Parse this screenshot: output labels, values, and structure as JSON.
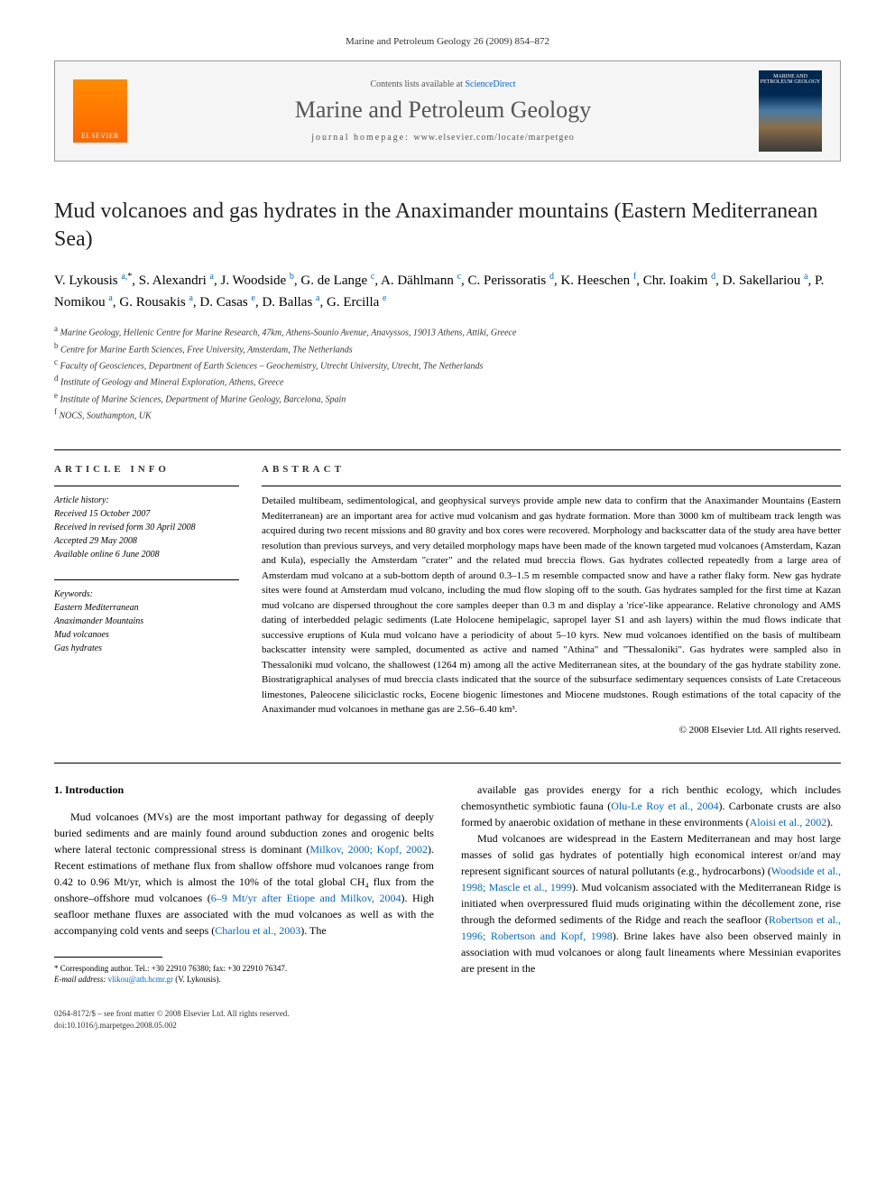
{
  "journal_ref": "Marine and Petroleum Geology 26 (2009) 854–872",
  "header": {
    "elsevier": "ELSEVIER",
    "contents_prefix": "Contents lists available at ",
    "contents_link": "ScienceDirect",
    "journal_name": "Marine and Petroleum Geology",
    "homepage_prefix": "journal homepage: ",
    "homepage_url": "www.elsevier.com/locate/marpetgeo",
    "cover_caption": "MARINE AND PETROLEUM GEOLOGY"
  },
  "title": "Mud volcanoes and gas hydrates in the Anaximander mountains (Eastern Mediterranean Sea)",
  "authors_html": "V. Lykousis <sup>a,</sup><sup class='asterisk'>*</sup>, S. Alexandri <sup>a</sup>, J. Woodside <sup>b</sup>, G. de Lange <sup>c</sup>, A. Dählmann <sup>c</sup>, C. Perissoratis <sup>d</sup>, K. Heeschen <sup>f</sup>, Chr. Ioakim <sup>d</sup>, D. Sakellariou <sup>a</sup>, P. Nomikou <sup>a</sup>, G. Rousakis <sup>a</sup>, D. Casas <sup>e</sup>, D. Ballas <sup>a</sup>, G. Ercilla <sup>e</sup>",
  "affiliations": [
    {
      "sup": "a",
      "text": "Marine Geology, Hellenic Centre for Marine Research, 47km, Athens-Sounio Avenue, Anavyssos, 19013 Athens, Attiki, Greece"
    },
    {
      "sup": "b",
      "text": "Centre for Marine Earth Sciences, Free University, Amsterdam, The Netherlands"
    },
    {
      "sup": "c",
      "text": "Faculty of Geosciences, Department of Earth Sciences – Geochemistry, Utrecht University, Utrecht, The Netherlands"
    },
    {
      "sup": "d",
      "text": "Institute of Geology and Mineral Exploration, Athens, Greece"
    },
    {
      "sup": "e",
      "text": "Institute of Marine Sciences, Department of Marine Geology, Barcelona, Spain"
    },
    {
      "sup": "f",
      "text": "NOCS, Southampton, UK"
    }
  ],
  "article_info_heading": "ARTICLE INFO",
  "abstract_heading": "ABSTRACT",
  "history": {
    "label": "Article history:",
    "received": "Received 15 October 2007",
    "revised": "Received in revised form 30 April 2008",
    "accepted": "Accepted 29 May 2008",
    "online": "Available online 6 June 2008"
  },
  "keywords": {
    "label": "Keywords:",
    "items": [
      "Eastern Mediterranean",
      "Anaximander Mountains",
      "Mud volcanoes",
      "Gas hydrates"
    ]
  },
  "abstract": "Detailed multibeam, sedimentological, and geophysical surveys provide ample new data to confirm that the Anaximander Mountains (Eastern Mediterranean) are an important area for active mud volcanism and gas hydrate formation. More than 3000 km of multibeam track length was acquired during two recent missions and 80 gravity and box cores were recovered. Morphology and backscatter data of the study area have better resolution than previous surveys, and very detailed morphology maps have been made of the known targeted mud volcanoes (Amsterdam, Kazan and Kula), especially the Amsterdam \"crater\" and the related mud breccia flows. Gas hydrates collected repeatedly from a large area of Amsterdam mud volcano at a sub-bottom depth of around 0.3–1.5 m resemble compacted snow and have a rather flaky form. New gas hydrate sites were found at Amsterdam mud volcano, including the mud flow sloping off to the south. Gas hydrates sampled for the first time at Kazan mud volcano are dispersed throughout the core samples deeper than 0.3 m and display a 'rice'-like appearance. Relative chronology and AMS dating of interbedded pelagic sediments (Late Holocene hemipelagic, sapropel layer S1 and ash layers) within the mud flows indicate that successive eruptions of Kula mud volcano have a periodicity of about 5–10 kyrs. New mud volcanoes identified on the basis of multibeam backscatter intensity were sampled, documented as active and named \"Athina\" and \"Thessaloniki\". Gas hydrates were sampled also in Thessaloniki mud volcano, the shallowest (1264 m) among all the active Mediterranean sites, at the boundary of the gas hydrate stability zone. Biostratigraphical analyses of mud breccia clasts indicated that the source of the subsurface sedimentary sequences consists of Late Cretaceous limestones, Paleocene siliciclastic rocks, Eocene biogenic limestones and Miocene mudstones. Rough estimations of the total capacity of the Anaximander mud volcanoes in methane gas are 2.56–6.40 km³.",
  "copyright": "© 2008 Elsevier Ltd. All rights reserved.",
  "intro_heading": "1. Introduction",
  "body": {
    "col1_p1": "Mud volcanoes (MVs) are the most important pathway for degassing of deeply buried sediments and are mainly found around subduction zones and orogenic belts where lateral tectonic compressional stress is dominant (Milkov, 2000; Kopf, 2002). Recent estimations of methane flux from shallow offshore mud volcanoes range from 0.42 to 0.96 Mt/yr, which is almost the 10% of the total global CH₄ flux from the onshore–offshore mud volcanoes (6–9 Mt/yr after Etiope and Milkov, 2004). High seafloor methane fluxes are associated with the mud volcanoes as well as with the accompanying cold vents and seeps (Charlou et al., 2003). The",
    "col2_p1": "available gas provides energy for a rich benthic ecology, which includes chemosynthetic symbiotic fauna (Olu-Le Roy et al., 2004). Carbonate crusts are also formed by anaerobic oxidation of methane in these environments (Aloisi et al., 2002).",
    "col2_p2": "Mud volcanoes are widespread in the Eastern Mediterranean and may host large masses of solid gas hydrates of potentially high economical interest or/and may represent significant sources of natural pollutants (e.g., hydrocarbons) (Woodside et al., 1998; Mascle et al., 1999). Mud volcanism associated with the Mediterranean Ridge is initiated when overpressured fluid muds originating within the décollement zone, rise through the deformed sediments of the Ridge and reach the seafloor (Robertson et al., 1996; Robertson and Kopf, 1998). Brine lakes have also been observed mainly in association with mud volcanoes or along fault lineaments where Messinian evaporites are present in the"
  },
  "footnote": {
    "line1": "* Corresponding author. Tel.: +30 22910 76380; fax: +30 22910 76347.",
    "line2_label": "E-mail address: ",
    "line2_email": "vlikou@ath.hcmr.gr",
    "line2_suffix": " (V. Lykousis)."
  },
  "bottom": {
    "line1": "0264-8172/$ – see front matter © 2008 Elsevier Ltd. All rights reserved.",
    "line2": "doi:10.1016/j.marpetgeo.2008.05.002"
  }
}
